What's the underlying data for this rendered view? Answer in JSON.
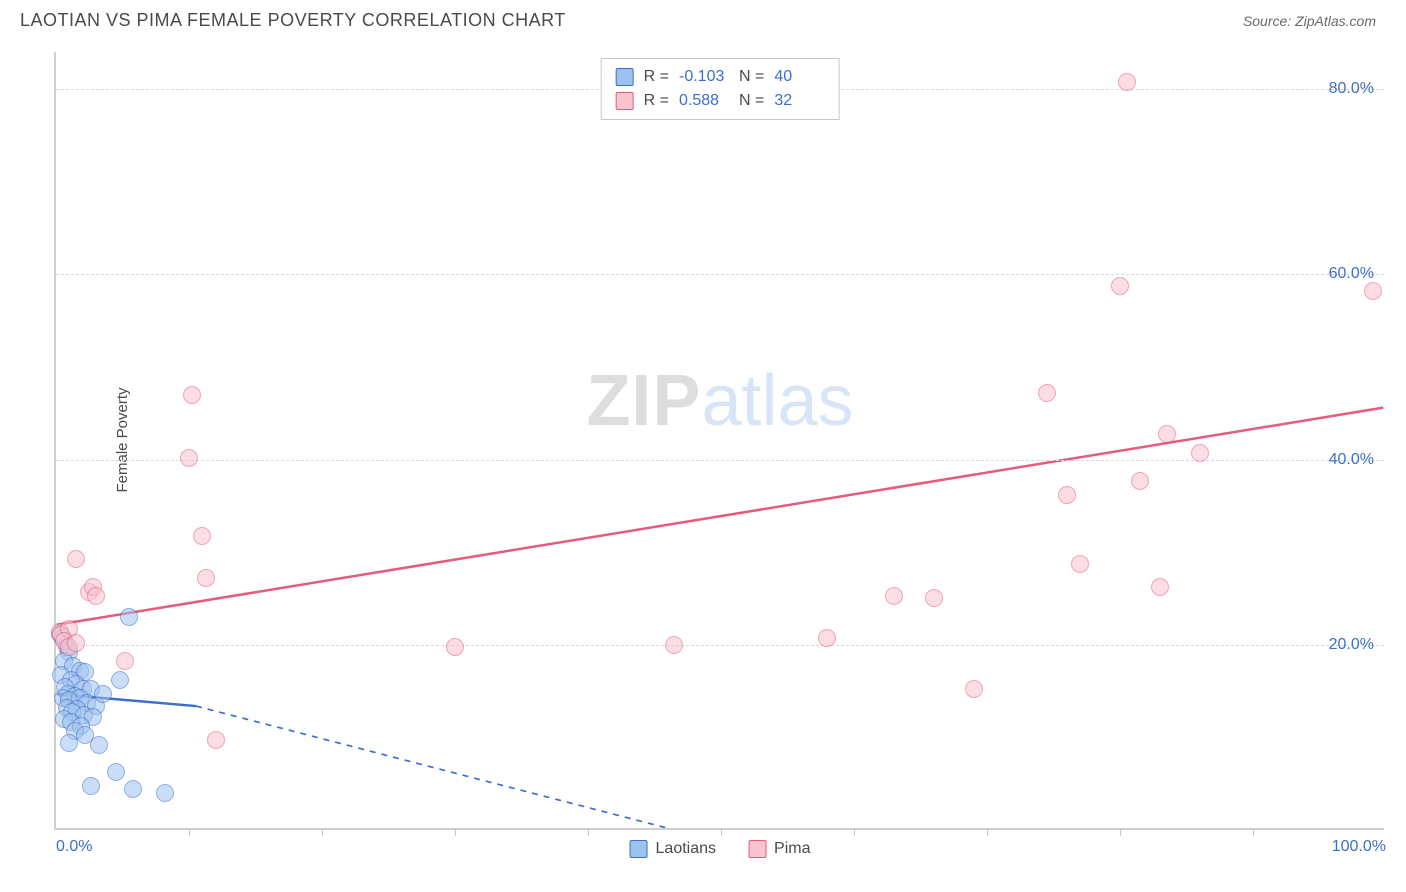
{
  "title": "LAOTIAN VS PIMA FEMALE POVERTY CORRELATION CHART",
  "source": "Source: ZipAtlas.com",
  "ylabel": "Female Poverty",
  "watermark_zip": "ZIP",
  "watermark_atlas": "atlas",
  "chart": {
    "type": "scatter",
    "xlim": [
      0,
      100
    ],
    "ylim": [
      0,
      84
    ],
    "title_fontsize": 18,
    "label_fontsize": 15,
    "tick_fontsize": 16,
    "value_color": "#3b6fc9",
    "grid_color": "#d8d8d8",
    "axis_color": "#d0d0d0",
    "background_color": "#ffffff",
    "marker_radius": 9,
    "marker_opacity": 0.55,
    "yticks": [
      {
        "v": 20,
        "label": "20.0%"
      },
      {
        "v": 40,
        "label": "40.0%"
      },
      {
        "v": 60,
        "label": "60.0%"
      },
      {
        "v": 80,
        "label": "80.0%"
      }
    ],
    "xticks_major": [
      {
        "v": 0,
        "label": "0.0%"
      },
      {
        "v": 100,
        "label": "100.0%"
      }
    ],
    "xticks_minor": [
      10,
      20,
      30,
      40,
      50,
      60,
      70,
      80,
      90
    ],
    "legend": {
      "series": [
        {
          "label": "Laotians",
          "fill": "#9ec2ef",
          "stroke": "#3b6fc9"
        },
        {
          "label": "Pima",
          "fill": "#f7c4cf",
          "stroke": "#e55a7d"
        }
      ]
    },
    "stats": [
      {
        "swatch_fill": "#9ec2ef",
        "swatch_stroke": "#3b6fc9",
        "r_label": "R =",
        "r": "-0.103",
        "n_label": "N =",
        "n": "40"
      },
      {
        "swatch_fill": "#f7c4cf",
        "swatch_stroke": "#e55a7d",
        "r_label": "R =",
        "r": "0.588",
        "n_label": "N =",
        "n": "32"
      }
    ],
    "series": [
      {
        "name": "Laotians",
        "fill": "#9ec2ef",
        "stroke": "#3b6fc9",
        "trend": {
          "x0": 0,
          "y0": 14.5,
          "x1": 10.5,
          "y1": 13.2,
          "solid_until_x": 10.5,
          "dash_to_x": 46,
          "dash_to_y": 0,
          "stroke_width": 2.5
        },
        "points": [
          [
            0.3,
            21
          ],
          [
            0.5,
            20.5
          ],
          [
            0.8,
            19.5
          ],
          [
            1.0,
            19
          ],
          [
            0.6,
            18
          ],
          [
            1.3,
            17.5
          ],
          [
            1.8,
            17
          ],
          [
            2.2,
            16.8
          ],
          [
            0.4,
            16.5
          ],
          [
            1.1,
            16
          ],
          [
            1.5,
            15.5
          ],
          [
            0.7,
            15.2
          ],
          [
            2.0,
            15
          ],
          [
            2.6,
            15
          ],
          [
            0.9,
            14.5
          ],
          [
            1.4,
            14.2
          ],
          [
            1.8,
            14
          ],
          [
            0.5,
            14
          ],
          [
            1.0,
            13.8
          ],
          [
            2.3,
            13.5
          ],
          [
            3.0,
            13.2
          ],
          [
            0.8,
            13
          ],
          [
            1.6,
            12.8
          ],
          [
            1.2,
            12.5
          ],
          [
            2.1,
            12.2
          ],
          [
            2.8,
            12
          ],
          [
            0.6,
            11.8
          ],
          [
            1.1,
            11.5
          ],
          [
            1.9,
            11
          ],
          [
            1.4,
            10.5
          ],
          [
            2.2,
            10
          ],
          [
            3.5,
            14.5
          ],
          [
            4.8,
            16
          ],
          [
            5.5,
            22.8
          ],
          [
            3.2,
            9
          ],
          [
            1.0,
            9.2
          ],
          [
            4.5,
            6
          ],
          [
            5.8,
            4.2
          ],
          [
            8.2,
            3.8
          ],
          [
            2.6,
            4.5
          ]
        ]
      },
      {
        "name": "Pima",
        "fill": "#f7c4cf",
        "stroke": "#e55a7d",
        "trend": {
          "x0": 0,
          "y0": 22,
          "x1": 100,
          "y1": 45.5,
          "solid_until_x": 100,
          "stroke_width": 2.5
        },
        "points": [
          [
            0.3,
            21.2
          ],
          [
            0.4,
            20.8
          ],
          [
            1.5,
            29
          ],
          [
            2.5,
            25.5
          ],
          [
            2.8,
            26
          ],
          [
            5.2,
            18
          ],
          [
            10,
            40
          ],
          [
            10.2,
            46.8
          ],
          [
            11,
            31.5
          ],
          [
            11.3,
            27
          ],
          [
            12,
            9.5
          ],
          [
            30,
            19.5
          ],
          [
            46.5,
            19.8
          ],
          [
            58,
            20.5
          ],
          [
            63,
            25
          ],
          [
            69,
            15
          ],
          [
            74.5,
            47
          ],
          [
            76,
            36
          ],
          [
            77,
            28.5
          ],
          [
            80,
            58.5
          ],
          [
            80.5,
            80.5
          ],
          [
            81.5,
            37.5
          ],
          [
            83,
            26
          ],
          [
            83.5,
            42.5
          ],
          [
            86,
            40.5
          ],
          [
            99,
            58
          ],
          [
            66,
            24.8
          ],
          [
            1.0,
            21.5
          ],
          [
            0.6,
            20.2
          ],
          [
            3.0,
            25
          ],
          [
            1.0,
            19.5
          ],
          [
            1.5,
            20
          ]
        ]
      }
    ]
  }
}
